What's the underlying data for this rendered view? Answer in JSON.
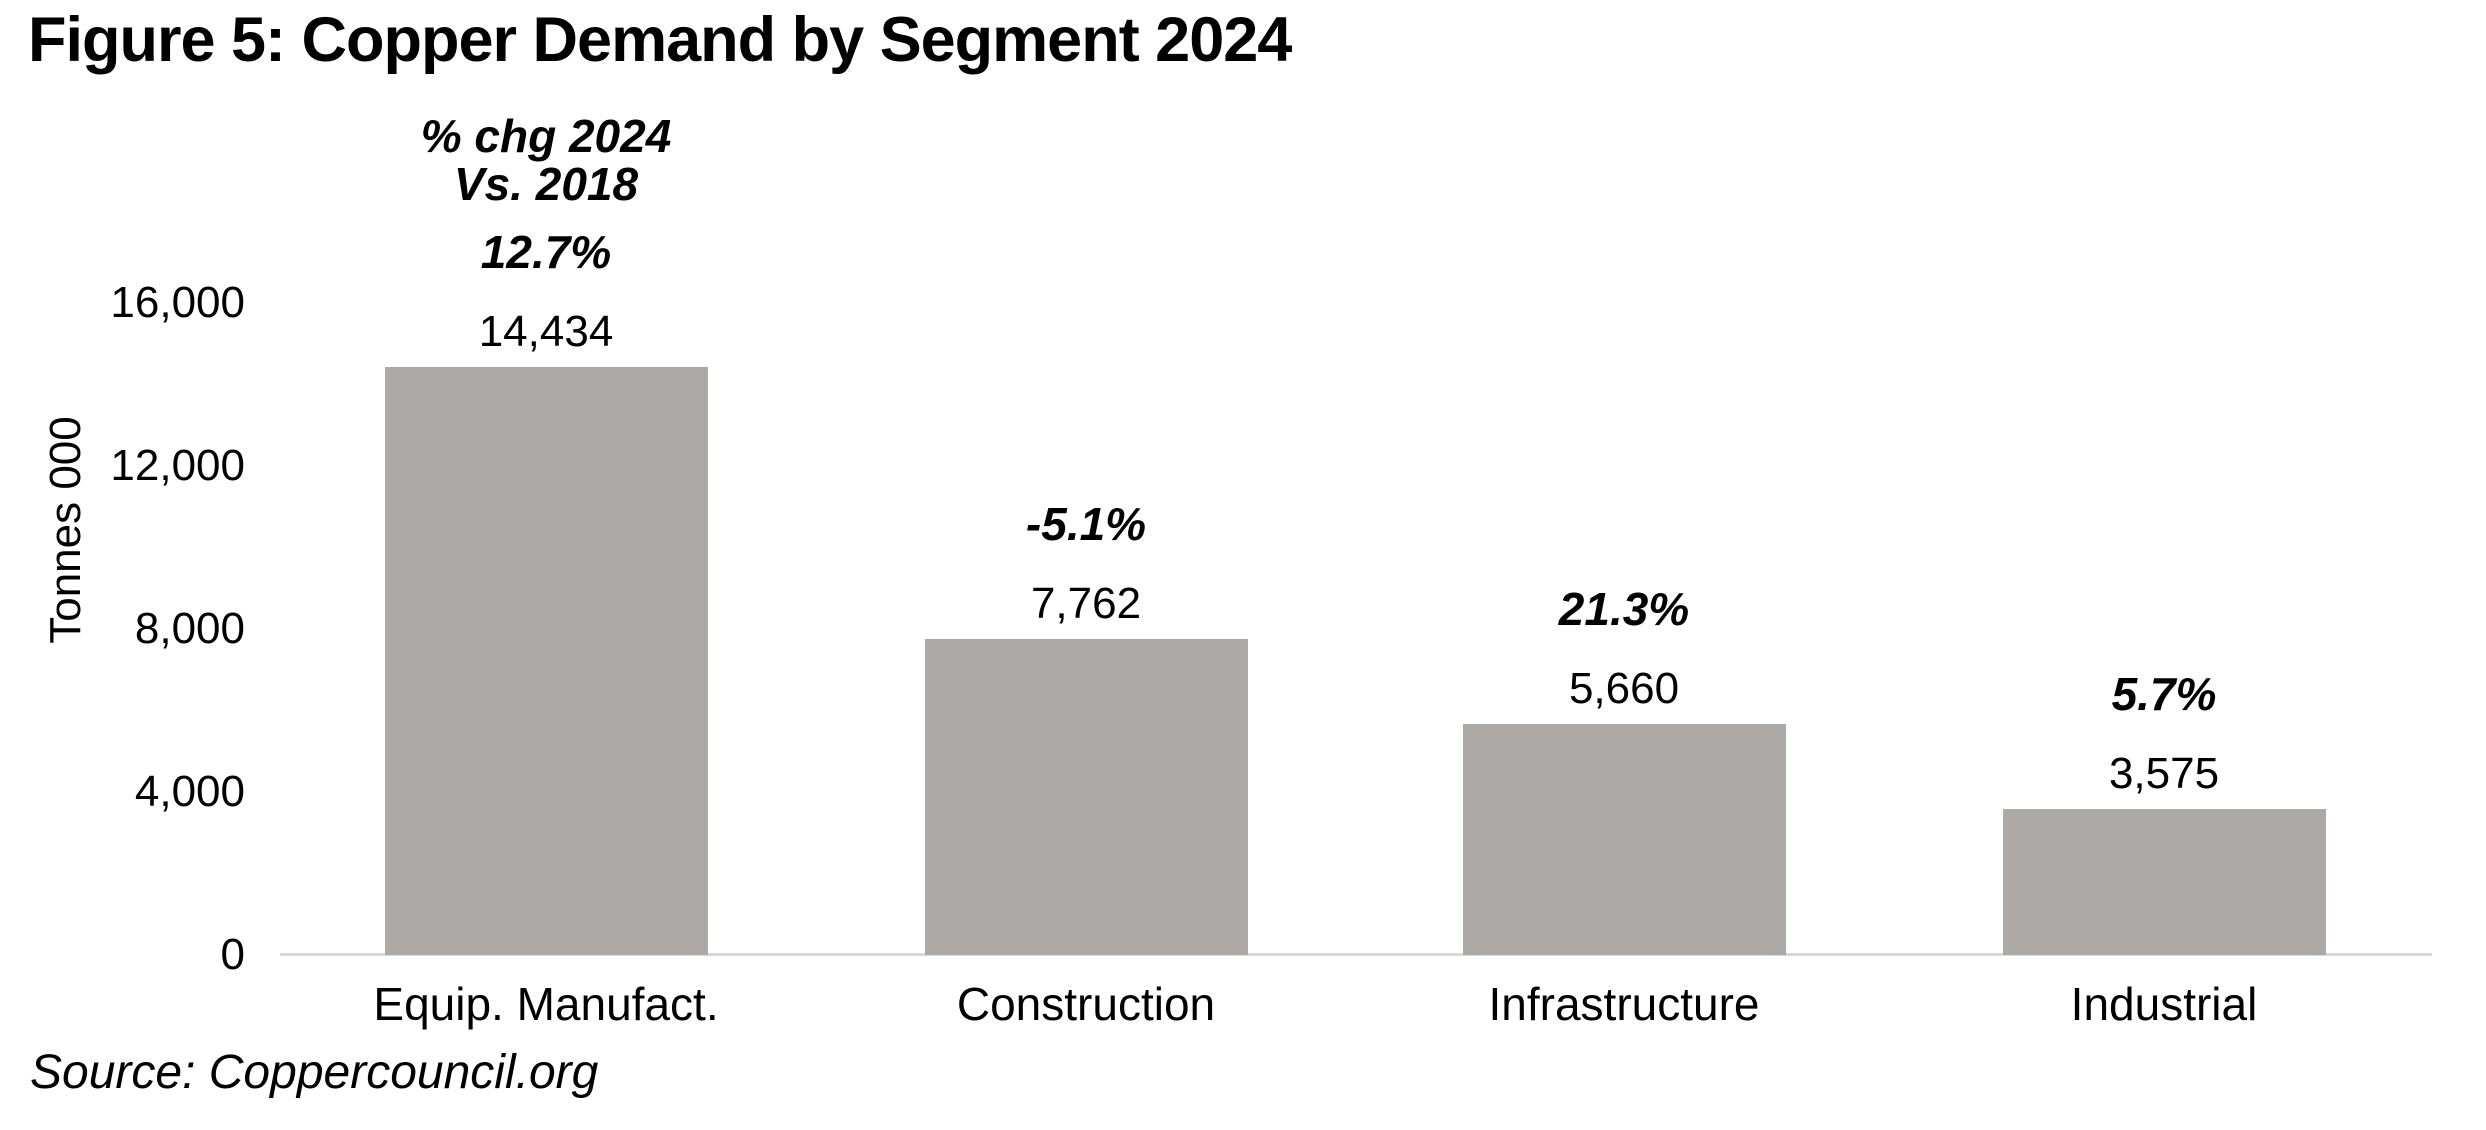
{
  "figure": {
    "title": "Figure 5: Copper Demand by Segment 2024",
    "source": "Source: Coppercouncil.org"
  },
  "annotation": {
    "line1": "% chg 2024",
    "line2": "Vs. 2018"
  },
  "chart_data": {
    "type": "bar",
    "title": "Figure 5: Copper Demand by Segment 2024",
    "categories": [
      "Equip. Manufact.",
      "Construction",
      "Infrastructure",
      "Industrial"
    ],
    "values": [
      14434,
      7762,
      5660,
      3575
    ],
    "value_labels": [
      "14,434",
      "7,762",
      "5,660",
      "3,575"
    ],
    "pct_change_vs_2018": [
      "12.7%",
      "-5.1%",
      "21.3%",
      "5.7%"
    ],
    "pct_change_header": "% chg 2024 Vs. 2018",
    "xlabel": "",
    "ylabel": "Tonnes 000",
    "ylim": [
      0,
      16000
    ],
    "yticks": [
      0,
      4000,
      8000,
      12000,
      16000
    ],
    "ytick_labels": [
      "0",
      "4,000",
      "8,000",
      "12,000",
      "16,000"
    ],
    "grid": false,
    "legend": false,
    "bar_color": "#aca9a7",
    "axis_line_color": "#d9d9d9",
    "text_color": "#000000",
    "source": "Source: Coppercouncil.org"
  }
}
